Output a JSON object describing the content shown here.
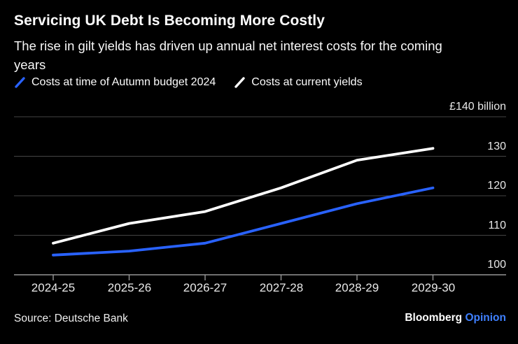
{
  "header": {
    "title": "Servicing UK Debt Is Becoming More Costly",
    "subtitle": "The rise in gilt yields has driven up annual net interest costs for the coming years"
  },
  "footer": {
    "source": "Source: Deutsche Bank",
    "brand": "Bloomberg",
    "brand_suffix": "Opinion",
    "brand_suffix_color": "#3f80ff"
  },
  "colors": {
    "background": "#000000",
    "gridline": "#454545",
    "baseline": "#969696",
    "axis_text": "#e8e8e8",
    "accent_blue": "#2962ff",
    "line_white": "#ffffff"
  },
  "chart_data": {
    "type": "line",
    "title": "Servicing UK Debt Is Becoming More Costly",
    "subtitle": "The rise in gilt yields has driven up annual net interest costs for the coming years",
    "unit_label": "£140 billion",
    "categories": [
      "2024-25",
      "2025-26",
      "2026-27",
      "2027-28",
      "2028-29",
      "2029-30"
    ],
    "series": [
      {
        "name": "Costs at time of Autumn budget 2024",
        "color": "#2962ff",
        "values": [
          105,
          106,
          108,
          113,
          118,
          122
        ]
      },
      {
        "name": "Costs at current yields",
        "color": "#ffffff",
        "values": [
          108,
          113,
          116,
          122,
          129,
          132
        ]
      }
    ],
    "ylim": [
      100,
      140
    ],
    "yticks": [
      {
        "value": 140,
        "label": "£140 billion"
      },
      {
        "value": 130,
        "label": "130"
      },
      {
        "value": 120,
        "label": "120"
      },
      {
        "value": 110,
        "label": "110"
      },
      {
        "value": 100,
        "label": "100"
      }
    ],
    "grid": "horizontal",
    "legend_position": "top"
  }
}
